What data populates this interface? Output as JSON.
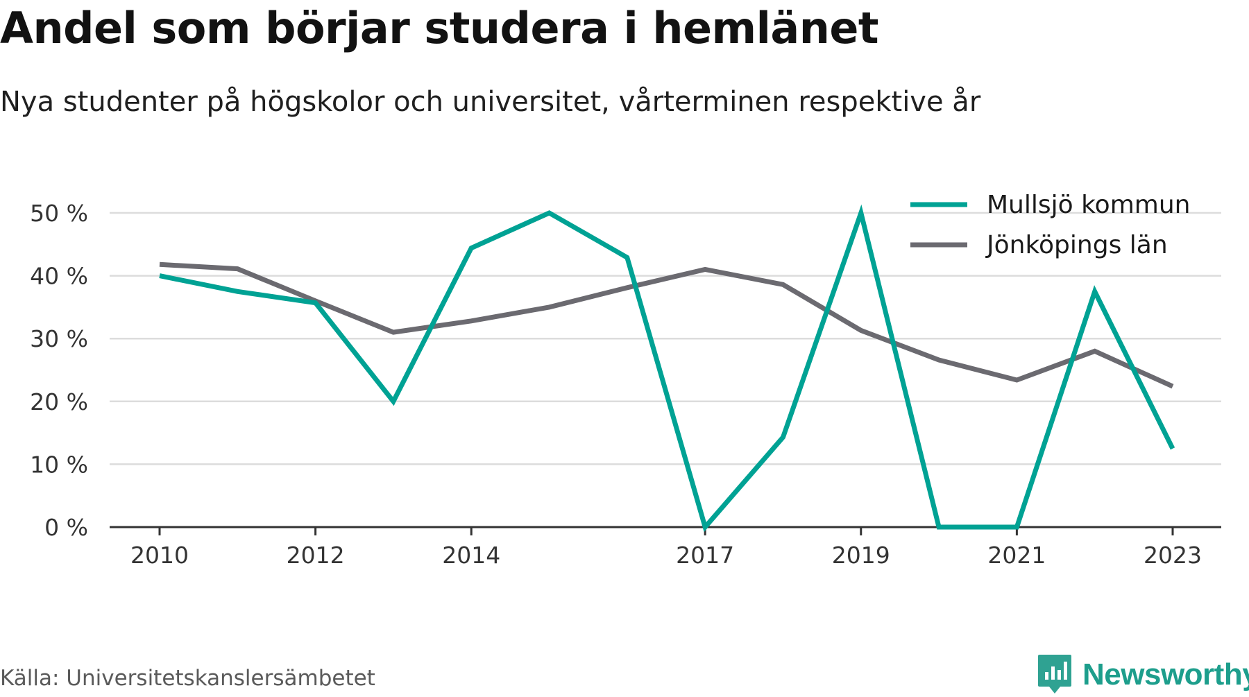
{
  "header": {
    "title": "Andel som börjar studera i hemlänet",
    "subtitle": "Nya studenter på högskolor och universitet, vårterminen respektive år"
  },
  "footer": {
    "source": "Källa: Universitetskanslersämbetet",
    "brand": "Newsworthy"
  },
  "colors": {
    "series_1": "#00a294",
    "series_2": "#6b6a70",
    "grid": "#dcdcdc",
    "axis": "#333333",
    "brand": "#1d9e8c"
  },
  "icons": {
    "brand_logo": "newsworthy-logo-icon"
  },
  "chart_data": {
    "type": "line",
    "title": "Andel som börjar studera i hemlänet",
    "subtitle": "Nya studenter på högskolor och universitet, vårterminen respektive år",
    "xlabel": "",
    "ylabel": "",
    "x": [
      2010,
      2011,
      2012,
      2013,
      2014,
      2015,
      2016,
      2017,
      2018,
      2019,
      2020,
      2021,
      2022,
      2023
    ],
    "x_ticks": [
      2010,
      2012,
      2014,
      2017,
      2019,
      2021,
      2023
    ],
    "y_ticks": [
      0,
      10,
      20,
      30,
      40,
      50
    ],
    "y_tick_labels": [
      "0 %",
      "10 %",
      "20 %",
      "30 %",
      "40 %",
      "50 %"
    ],
    "ylim": [
      0,
      50
    ],
    "grid": true,
    "legend_position": "top-right",
    "series": [
      {
        "name": "Mullsjö kommun",
        "color": "#00a294",
        "values": [
          40,
          37.5,
          35.7,
          20,
          44.4,
          50,
          42.9,
          0,
          14.3,
          50,
          0,
          0,
          37.5,
          12.5
        ]
      },
      {
        "name": "Jönköpings län",
        "color": "#6b6a70",
        "values": [
          41.8,
          41.1,
          36,
          31,
          32.8,
          35,
          38.1,
          41,
          38.6,
          31.3,
          26.6,
          23.4,
          28,
          22.4
        ]
      }
    ]
  }
}
